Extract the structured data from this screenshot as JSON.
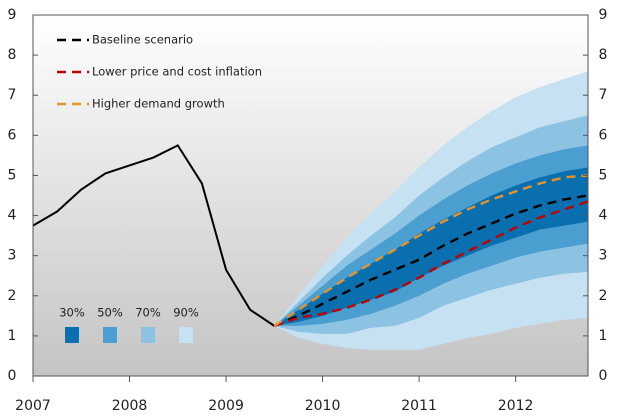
{
  "chart_data": {
    "type": "fan",
    "xlim": [
      2007,
      2012.75
    ],
    "xticks": [
      2007,
      2008,
      2009,
      2010,
      2011,
      2012
    ],
    "ylim": [
      0,
      9
    ],
    "yticks": [
      0,
      1,
      2,
      3,
      4,
      5,
      6,
      7,
      8,
      9
    ],
    "right_axis": true,
    "legend": "upper left",
    "series": [
      {
        "name": "Baseline scenario",
        "color": "#000000",
        "x": [
          2007,
          2007.25,
          2007.5,
          2007.75,
          2008,
          2008.25,
          2008.5,
          2008.75,
          2009,
          2009.25,
          2009.5,
          2009.75,
          2010,
          2010.25,
          2010.5,
          2010.75,
          2011,
          2011.25,
          2011.5,
          2011.75,
          2012,
          2012.25,
          2012.5,
          2012.75
        ],
        "values": [
          3.75,
          4.1,
          4.65,
          5.05,
          5.25,
          5.45,
          5.75,
          4.8,
          2.65,
          1.65,
          1.25,
          1.5,
          1.8,
          2.1,
          2.4,
          2.65,
          2.9,
          3.25,
          3.55,
          3.8,
          4.05,
          4.25,
          4.4,
          4.5
        ]
      },
      {
        "name": "Lower price and cost inflation",
        "color": "#c00000",
        "x": [
          2009.5,
          2009.75,
          2010,
          2010.25,
          2010.5,
          2010.75,
          2011,
          2011.25,
          2011.5,
          2011.75,
          2012,
          2012.25,
          2012.5,
          2012.75
        ],
        "values": [
          1.25,
          1.45,
          1.55,
          1.7,
          1.9,
          2.15,
          2.45,
          2.8,
          3.1,
          3.4,
          3.7,
          3.95,
          4.15,
          4.35
        ]
      },
      {
        "name": "Higher demand growth",
        "color": "#e8922a",
        "x": [
          2009.5,
          2009.75,
          2010,
          2010.25,
          2010.5,
          2010.75,
          2011,
          2011.25,
          2011.5,
          2011.75,
          2012,
          2012.25,
          2012.5,
          2012.75
        ],
        "values": [
          1.25,
          1.65,
          2.05,
          2.45,
          2.8,
          3.15,
          3.5,
          3.85,
          4.15,
          4.4,
          4.6,
          4.8,
          4.95,
          5.0
        ]
      }
    ],
    "fan": {
      "x": [
        2009.5,
        2009.75,
        2010,
        2010.25,
        2010.5,
        2010.75,
        2011,
        2011.25,
        2011.5,
        2011.75,
        2012,
        2012.25,
        2012.5,
        2012.75
      ],
      "bands": [
        {
          "name": "30%",
          "color": "#0a6fae",
          "lower": [
            1.25,
            1.35,
            1.5,
            1.7,
            1.9,
            2.1,
            2.45,
            2.75,
            3.0,
            3.25,
            3.45,
            3.65,
            3.75,
            3.85
          ],
          "upper": [
            1.25,
            1.65,
            2.05,
            2.45,
            2.8,
            3.15,
            3.55,
            3.9,
            4.2,
            4.5,
            4.75,
            4.95,
            5.1,
            5.2
          ]
        },
        {
          "name": "50%",
          "color": "#4a9fd0",
          "lower": [
            1.25,
            1.25,
            1.3,
            1.4,
            1.55,
            1.75,
            2.0,
            2.3,
            2.55,
            2.75,
            2.95,
            3.1,
            3.2,
            3.3
          ],
          "upper": [
            1.25,
            1.75,
            2.25,
            2.75,
            3.15,
            3.55,
            4.0,
            4.4,
            4.75,
            5.05,
            5.3,
            5.5,
            5.65,
            5.75
          ]
        },
        {
          "name": "70%",
          "color": "#8cc3e3",
          "lower": [
            1.25,
            1.1,
            1.05,
            1.05,
            1.2,
            1.25,
            1.45,
            1.75,
            1.95,
            2.15,
            2.3,
            2.45,
            2.55,
            2.6
          ],
          "upper": [
            1.25,
            1.85,
            2.45,
            3.0,
            3.5,
            3.95,
            4.5,
            4.95,
            5.35,
            5.7,
            5.95,
            6.2,
            6.35,
            6.5
          ]
        },
        {
          "name": "90%",
          "color": "#c6e1f1",
          "lower": [
            1.25,
            0.95,
            0.8,
            0.7,
            0.65,
            0.65,
            0.65,
            0.8,
            0.95,
            1.05,
            1.2,
            1.3,
            1.4,
            1.45
          ],
          "upper": [
            1.25,
            2.0,
            2.75,
            3.45,
            4.05,
            4.6,
            5.2,
            5.75,
            6.2,
            6.6,
            6.95,
            7.2,
            7.4,
            7.6
          ]
        }
      ]
    }
  }
}
